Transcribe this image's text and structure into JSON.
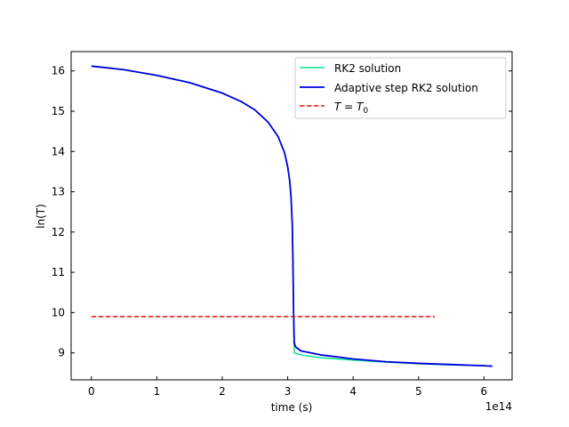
{
  "chart_data": {
    "type": "line",
    "xlabel": "time (s)",
    "ylabel": "ln(T)",
    "x_offset_label": "1e14",
    "xlim": [
      -0.31,
      6.43
    ],
    "ylim": [
      8.33,
      16.48
    ],
    "x_ticks": [
      0,
      1,
      2,
      3,
      4,
      5,
      6
    ],
    "x_tick_labels": [
      "0",
      "1",
      "2",
      "3",
      "4",
      "5",
      "6"
    ],
    "y_ticks": [
      9,
      10,
      11,
      12,
      13,
      14,
      15,
      16
    ],
    "y_tick_labels": [
      "9",
      "10",
      "11",
      "12",
      "13",
      "14",
      "15",
      "16"
    ],
    "legend_position": "upper-right",
    "legend": [
      {
        "label": "RK2 solution",
        "color": "#00e58a",
        "style": "solid"
      },
      {
        "label": "Adaptive step RK2 solution",
        "color": "#0000dd",
        "style": "solid"
      },
      {
        "label_main": "T = T",
        "label_sub": "0",
        "color": "#ee1111",
        "style": "dashed"
      }
    ],
    "series": [
      {
        "name": "RK2 solution",
        "color": "#00e58a",
        "x": [
          0,
          0.5,
          1.0,
          1.5,
          2.0,
          2.3,
          2.5,
          2.7,
          2.85,
          2.95,
          3.0,
          3.03,
          3.05,
          3.07,
          3.08,
          3.09,
          3.1,
          3.2,
          3.5,
          4.0,
          4.5,
          5.0,
          5.5,
          6.0,
          6.13
        ],
        "y": [
          16.12,
          16.03,
          15.89,
          15.71,
          15.45,
          15.23,
          15.03,
          14.73,
          14.38,
          13.98,
          13.62,
          13.28,
          12.9,
          12.2,
          11.3,
          10.0,
          9.0,
          8.95,
          8.88,
          8.82,
          8.77,
          8.73,
          8.7,
          8.68,
          8.67
        ]
      },
      {
        "name": "Adaptive step RK2 solution",
        "color": "#0000dd",
        "x": [
          0,
          0.5,
          1.0,
          1.5,
          2.0,
          2.3,
          2.5,
          2.7,
          2.85,
          2.95,
          3.0,
          3.03,
          3.05,
          3.07,
          3.08,
          3.09,
          3.1,
          3.12,
          3.2,
          3.5,
          4.0,
          4.5,
          5.0,
          5.5,
          6.0,
          6.13
        ],
        "y": [
          16.12,
          16.03,
          15.89,
          15.71,
          15.45,
          15.23,
          15.03,
          14.73,
          14.38,
          13.98,
          13.62,
          13.28,
          12.9,
          12.2,
          11.3,
          10.0,
          9.25,
          9.15,
          9.05,
          8.95,
          8.85,
          8.78,
          8.74,
          8.71,
          8.68,
          8.67
        ]
      },
      {
        "name": "T = T0",
        "color": "#ee1111",
        "dashed": true,
        "x": [
          0,
          5.25
        ],
        "y": [
          9.9,
          9.9
        ]
      }
    ]
  }
}
